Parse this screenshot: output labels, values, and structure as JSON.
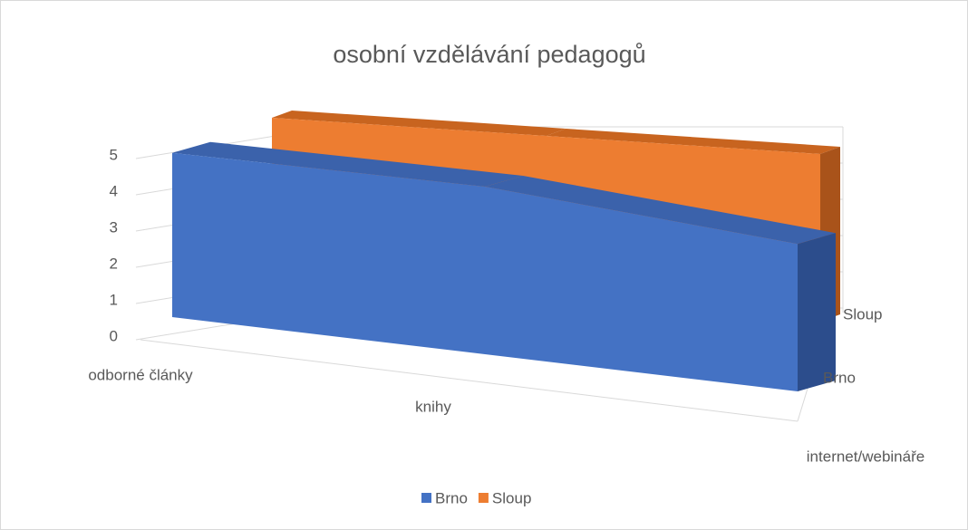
{
  "chart_data": {
    "type": "area",
    "title": "osobní vzdělávání pedagogů",
    "categories": [
      "odborné články",
      "knihy",
      "internet/webináře"
    ],
    "series": [
      {
        "name": "Brno",
        "color": "#4472c4",
        "values": [
          4.9,
          5,
          4.4
        ]
      },
      {
        "name": "Sloup",
        "color": "#ed7d31",
        "values": [
          5,
          5,
          5
        ]
      }
    ],
    "ylim": [
      0,
      5
    ],
    "yticks": [
      0,
      1,
      2,
      3,
      4,
      5
    ],
    "grid": true,
    "legend": "bottom"
  }
}
